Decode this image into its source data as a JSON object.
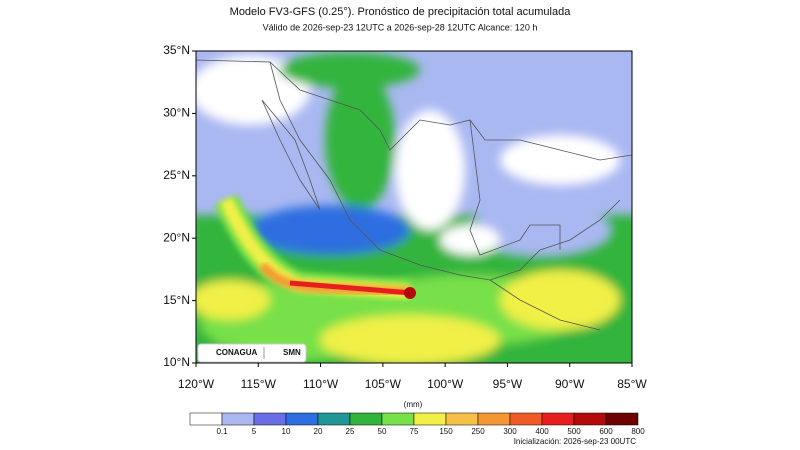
{
  "header": {
    "title": "Modelo FV3-GFS (0.25°). Pronóstico de precipitación total acumulada",
    "subtitle": "Válido de 2026-sep-23 12UTC a 2026-sep-28 12UTC     Alcance: 120 h"
  },
  "map": {
    "lat_labels": [
      "35°N",
      "30°N",
      "25°N",
      "20°N",
      "15°N",
      "10°N"
    ],
    "lon_labels": [
      "120°W",
      "115°W",
      "110°W",
      "105°W",
      "100°W",
      "95°W",
      "90°W",
      "85°W"
    ],
    "logos": [
      "CONAGUA",
      "SMN"
    ]
  },
  "colorbar": {
    "unit": "(mm)",
    "labels": [
      "0.1",
      "5",
      "10",
      "20",
      "25",
      "50",
      "75",
      "150",
      "250",
      "300",
      "400",
      "500",
      "600",
      "800"
    ],
    "colors": [
      "#ffffff",
      "#aab8f2",
      "#6a6ee6",
      "#2e6ee0",
      "#1e9696",
      "#30b43c",
      "#78e048",
      "#f0f046",
      "#f4c048",
      "#f49632",
      "#f05a28",
      "#e61e1e",
      "#b40a0a",
      "#6e0000"
    ]
  },
  "footer": {
    "init": "Inicialización: 2026-sep-23 00UTC"
  }
}
